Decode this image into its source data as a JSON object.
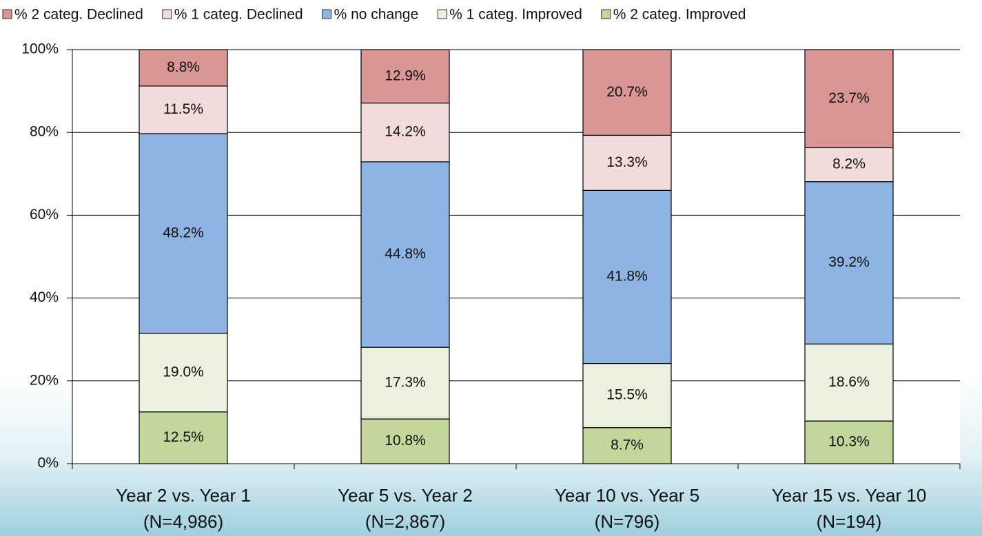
{
  "chart_data": {
    "type": "stacked-bar",
    "categories": [
      [
        "Year 2 vs. Year 1",
        "(N=4,986)"
      ],
      [
        "Year 5 vs. Year 2",
        "(N=2,867)"
      ],
      [
        "Year 10 vs. Year 5",
        "(N=796)"
      ],
      [
        "Year 15 vs. Year 10",
        "(N=194)"
      ]
    ],
    "series": [
      {
        "name": "% 2 categ. Declined",
        "color": "#d99694",
        "values": [
          8.8,
          12.9,
          20.7,
          23.7
        ],
        "value_labels": [
          "8.8%",
          "12.9%",
          "20.7%",
          "23.7%"
        ]
      },
      {
        "name": "% 1 categ. Declined",
        "color": "#f2dcdb",
        "values": [
          11.5,
          14.2,
          13.3,
          8.2
        ],
        "value_labels": [
          "11.5%",
          "14.2%",
          "13.3%",
          "8.2%"
        ]
      },
      {
        "name": "% no change",
        "color": "#8eb4e3",
        "values": [
          48.2,
          44.8,
          41.8,
          39.2
        ],
        "value_labels": [
          "48.2%",
          "44.8%",
          "41.8%",
          "39.2%"
        ]
      },
      {
        "name": "% 1 categ. Improved",
        "color": "#ebf1de",
        "values": [
          19.0,
          17.3,
          15.5,
          18.6
        ],
        "value_labels": [
          "19.0%",
          "17.3%",
          "15.5%",
          "18.6%"
        ]
      },
      {
        "name": "% 2 categ. Improved",
        "color": "#c3d69b",
        "values": [
          12.5,
          10.8,
          8.7,
          10.3
        ],
        "value_labels": [
          "12.5%",
          "10.8%",
          "8.7%",
          "10.3%"
        ]
      }
    ],
    "ylim": [
      0,
      100
    ],
    "yticks": [
      {
        "value": 0,
        "label": "0%"
      },
      {
        "value": 20,
        "label": "20%"
      },
      {
        "value": 40,
        "label": "40%"
      },
      {
        "value": 60,
        "label": "60%"
      },
      {
        "value": 80,
        "label": "80%"
      },
      {
        "value": 100,
        "label": "100%"
      }
    ],
    "grid": true,
    "legend": "top"
  }
}
